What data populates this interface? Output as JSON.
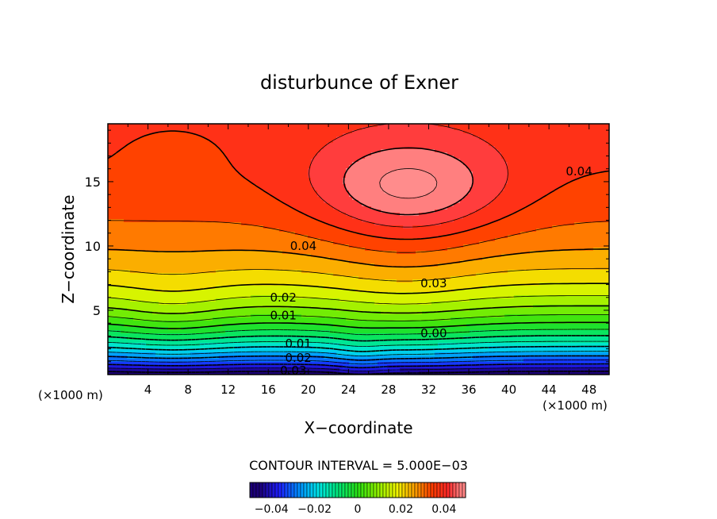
{
  "chart_data": {
    "type": "contour",
    "title": "disturbunce of Exner",
    "xlabel": "X−coordinate",
    "ylabel": "Z−coordinate",
    "x_unit_left": "(×1000 m)",
    "x_unit_right": "(×1000 m)",
    "xlim": [
      0,
      50
    ],
    "ylim": [
      0,
      19.5
    ],
    "x_ticks": [
      4,
      8,
      12,
      16,
      20,
      24,
      28,
      32,
      36,
      40,
      44,
      48
    ],
    "y_ticks": [
      5,
      10,
      15
    ],
    "contour_interval_text": "CONTOUR INTERVAL = 5.000E−03",
    "contour_interval": 0.005,
    "value_range": [
      -0.05,
      0.05
    ],
    "contour_labels": [
      {
        "text": "0.04",
        "x": 19.5,
        "z": 10.0
      },
      {
        "text": "0.04",
        "x": 47.0,
        "z": 15.8
      },
      {
        "text": "0.03",
        "x": 32.5,
        "z": 7.1
      },
      {
        "text": "0.02",
        "x": 17.5,
        "z": 6.0
      },
      {
        "text": "0.01",
        "x": 17.5,
        "z": 4.6
      },
      {
        "text": "0.00",
        "x": 32.5,
        "z": 3.2
      },
      {
        "text": "0.01",
        "x": 19.0,
        "z": 2.4
      },
      {
        "text": "0.02",
        "x": 19.0,
        "z": 1.3
      },
      {
        "text": "0.03",
        "x": 18.5,
        "z": 0.3
      }
    ],
    "colorbar": {
      "ticks": [
        -0.04,
        -0.02,
        0,
        0.02,
        0.04
      ],
      "tick_labels": [
        "−0.04",
        "−0.02",
        "0",
        "0.02",
        "0.04"
      ]
    }
  }
}
